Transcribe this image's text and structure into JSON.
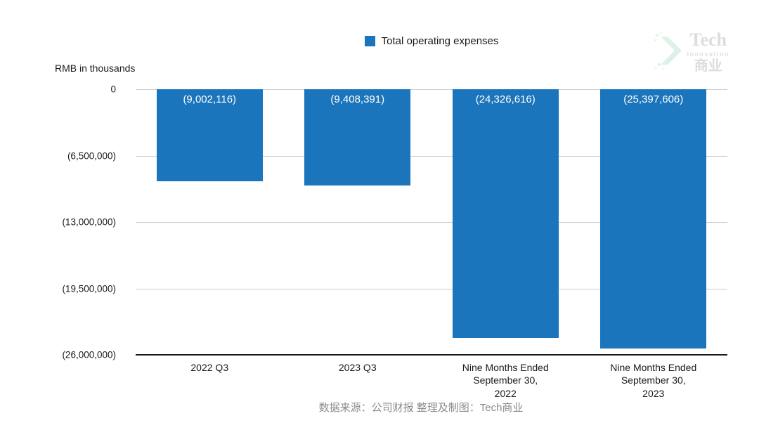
{
  "header": {
    "unit_label": "RMB in thousands"
  },
  "legend": {
    "label": "Total operating expenses",
    "color": "#1B75BC"
  },
  "logo": {
    "line1": "Tech",
    "line2": "Innovation",
    "line3": "商业"
  },
  "footer": {
    "source_note": "数据来源：公司财报 整理及制图：Tech商业"
  },
  "chart_data": {
    "type": "bar",
    "title": "",
    "unit_label": "RMB in thousands",
    "legend_entries": [
      "Total operating expenses"
    ],
    "legend_position": "top-center",
    "grid": true,
    "bar_color": "#1B75BC",
    "categories": [
      "2022 Q3",
      "2023 Q3",
      "Nine Months Ended\nSeptember 30,\n2022",
      "Nine Months Ended\nSeptember 30,\n2023"
    ],
    "values": [
      -9002116,
      -9408391,
      -24326616,
      -25397606
    ],
    "bar_labels": [
      "(9,002,116)",
      "(9,408,391)",
      "(24,326,616)",
      "(25,397,606)"
    ],
    "ylim": [
      -26000000,
      0
    ],
    "y_ticks": [
      {
        "value": 0,
        "label": "0"
      },
      {
        "value": -6500000,
        "label": "(6,500,000)"
      },
      {
        "value": -13000000,
        "label": "(13,000,000)"
      },
      {
        "value": -19500000,
        "label": "(19,500,000)"
      },
      {
        "value": -26000000,
        "label": "(26,000,000)"
      }
    ]
  }
}
